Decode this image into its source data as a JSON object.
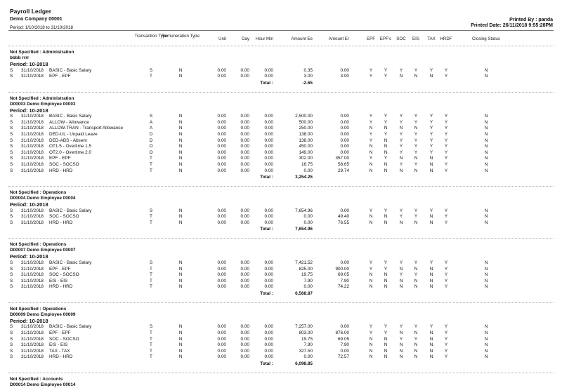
{
  "header": {
    "title": "Payroll Ledger",
    "company": "Demo Company 00001",
    "period": "Period: 1/10/2018 to 31/10/2018",
    "printed_by": "Printed By : panda",
    "printed_date": "Printed Date: 26/11/2018  9:55:28PM"
  },
  "columns": {
    "transaction_type": "Transaction Type",
    "remuneration_type": "Remuneration Type",
    "unit": "Unit",
    "day": "Day",
    "hour_min": "Hour Min",
    "amount_ee": "Amount Ee",
    "amount_er": "Amount Er",
    "epf": "EPF",
    "epfs": "EPF's",
    "soc": "SOC",
    "eis": "EIS",
    "tax": "TAX",
    "hrdf": "HRDF",
    "closing_status": "Closing Status"
  },
  "total_label": "Total :",
  "sections": [
    {
      "dept": "Not Specified : Administration",
      "employee": "bbbb rrrr",
      "period": "Period: 10-2018",
      "rows": [
        [
          "S",
          "31/10/2018",
          "BASIC - Basic Salary",
          "S",
          "N",
          "0.00",
          "0.00",
          "0.00",
          "0.35",
          "0.00",
          "Y",
          "Y",
          "Y",
          "Y",
          "Y",
          "Y",
          "N"
        ],
        [
          "S",
          "31/10/2018",
          "EPF - EPF",
          "T",
          "N",
          "0.00",
          "0.00",
          "0.00",
          "3.00",
          "3.00",
          "Y",
          "Y",
          "N",
          "N",
          "N",
          "Y",
          "N"
        ]
      ],
      "total": "-2.65"
    },
    {
      "dept": "Not Specified : Administration",
      "employee": "D00003 Demo Employee 00003",
      "period": "Period: 10-2018",
      "rows": [
        [
          "S",
          "31/10/2018",
          "BASIC - Basic Salary",
          "S",
          "N",
          "0.00",
          "0.00",
          "0.00",
          "2,500.00",
          "0.00",
          "Y",
          "Y",
          "Y",
          "Y",
          "Y",
          "Y",
          "N"
        ],
        [
          "S",
          "31/10/2018",
          "ALLOW - Allowance",
          "A",
          "N",
          "0.00",
          "0.00",
          "0.00",
          "500.00",
          "0.00",
          "Y",
          "Y",
          "Y",
          "Y",
          "Y",
          "Y",
          "N"
        ],
        [
          "S",
          "31/10/2018",
          "ALLOW-TRAN - Transport Allowance",
          "A",
          "N",
          "0.00",
          "0.00",
          "0.00",
          "250.00",
          "0.00",
          "N",
          "N",
          "N",
          "N",
          "Y",
          "Y",
          "N"
        ],
        [
          "S",
          "31/10/2018",
          "DED-UL - Unpaid Leave",
          "D",
          "N",
          "0.00",
          "0.00",
          "0.00",
          "138.00",
          "0.00",
          "Y",
          "Y",
          "Y",
          "Y",
          "Y",
          "Y",
          "N"
        ],
        [
          "S",
          "31/10/2018",
          "DED-ABS - Absent",
          "D",
          "N",
          "0.00",
          "0.00",
          "0.00",
          "138.00",
          "0.00",
          "Y",
          "N",
          "Y",
          "Y",
          "Y",
          "Y",
          "N"
        ],
        [
          "S",
          "31/10/2018",
          "OT1.5 - Overtime 1.5",
          "O",
          "N",
          "0.00",
          "0.00",
          "0.00",
          "450.00",
          "0.00",
          "N",
          "N",
          "Y",
          "Y",
          "Y",
          "Y",
          "N"
        ],
        [
          "S",
          "31/10/2018",
          "OT2.0 - Overtime 2.0",
          "O",
          "N",
          "0.00",
          "0.00",
          "0.00",
          "149.00",
          "0.00",
          "N",
          "N",
          "Y",
          "Y",
          "Y",
          "Y",
          "N"
        ],
        [
          "S",
          "31/10/2018",
          "EPF - EPF",
          "T",
          "N",
          "0.00",
          "0.00",
          "0.00",
          "302.00",
          "357.00",
          "Y",
          "Y",
          "N",
          "N",
          "N",
          "Y",
          "N"
        ],
        [
          "S",
          "31/10/2018",
          "SOC - SOCSO",
          "T",
          "N",
          "0.00",
          "0.00",
          "0.00",
          "16.75",
          "58.65",
          "N",
          "N",
          "Y",
          "Y",
          "N",
          "Y",
          "N"
        ],
        [
          "S",
          "31/10/2018",
          "HRD - HRD",
          "T",
          "N",
          "0.00",
          "0.00",
          "0.00",
          "0.00",
          "29.74",
          "N",
          "N",
          "N",
          "N",
          "N",
          "Y",
          "N"
        ]
      ],
      "total": "3,254.25"
    },
    {
      "dept": "Not Specified : Operations",
      "employee": "D00004 Demo Employee 00004",
      "period": "Period: 10-2018",
      "rows": [
        [
          "S",
          "31/10/2018",
          "BASIC - Basic Salary",
          "S",
          "N",
          "0.00",
          "0.00",
          "0.00",
          "7,654.96",
          "0.00",
          "Y",
          "Y",
          "Y",
          "Y",
          "Y",
          "Y",
          "N"
        ],
        [
          "S",
          "31/10/2018",
          "SOC - SOCSO",
          "T",
          "N",
          "0.00",
          "0.00",
          "0.00",
          "0.00",
          "49.40",
          "N",
          "N",
          "Y",
          "Y",
          "N",
          "Y",
          "N"
        ],
        [
          "S",
          "31/10/2018",
          "HRD - HRD",
          "T",
          "N",
          "0.00",
          "0.00",
          "0.00",
          "0.00",
          "76.55",
          "N",
          "N",
          "N",
          "N",
          "N",
          "Y",
          "N"
        ]
      ],
      "total": "7,654.96"
    },
    {
      "dept": "Not Specified : Operations",
      "employee": "D00007 Demo Employee 00007",
      "period": "Period: 10-2018",
      "rows": [
        [
          "S",
          "31/10/2018",
          "BASIC - Basic Salary",
          "S",
          "N",
          "0.00",
          "0.00",
          "0.00",
          "7,421.52",
          "0.00",
          "Y",
          "Y",
          "Y",
          "Y",
          "Y",
          "Y",
          "N"
        ],
        [
          "S",
          "31/10/2018",
          "EPF - EPF",
          "T",
          "N",
          "0.00",
          "0.00",
          "0.00",
          "825.00",
          "900.00",
          "Y",
          "Y",
          "N",
          "N",
          "N",
          "Y",
          "N"
        ],
        [
          "S",
          "31/10/2018",
          "SOC - SOCSO",
          "T",
          "N",
          "0.00",
          "0.00",
          "0.00",
          "19.75",
          "69.05",
          "N",
          "N",
          "Y",
          "Y",
          "N",
          "Y",
          "N"
        ],
        [
          "S",
          "31/10/2018",
          "EIS - EIS",
          "T",
          "N",
          "0.00",
          "0.00",
          "0.00",
          "7.90",
          "7.90",
          "N",
          "N",
          "N",
          "N",
          "N",
          "Y",
          "N"
        ],
        [
          "S",
          "31/10/2018",
          "HRD - HRD",
          "T",
          "N",
          "0.00",
          "0.00",
          "0.00",
          "0.00",
          "74.22",
          "N",
          "N",
          "N",
          "N",
          "N",
          "Y",
          "N"
        ]
      ],
      "total": "6,568.87"
    },
    {
      "dept": "Not Specified : Operations",
      "employee": "D00009 Demo Employee 00009",
      "period": "Period: 10-2018",
      "rows": [
        [
          "S",
          "31/10/2018",
          "BASIC - Basic Salary",
          "S",
          "N",
          "0.00",
          "0.00",
          "0.00",
          "7,257.00",
          "0.00",
          "Y",
          "Y",
          "Y",
          "Y",
          "Y",
          "Y",
          "N"
        ],
        [
          "S",
          "31/10/2018",
          "EPF - EPF",
          "T",
          "N",
          "0.00",
          "0.00",
          "0.00",
          "803.00",
          "876.00",
          "Y",
          "Y",
          "N",
          "N",
          "N",
          "Y",
          "N"
        ],
        [
          "S",
          "31/10/2018",
          "SOC - SOCSO",
          "T",
          "N",
          "0.00",
          "0.00",
          "0.00",
          "19.75",
          "69.05",
          "N",
          "N",
          "Y",
          "Y",
          "N",
          "Y",
          "N"
        ],
        [
          "S",
          "31/10/2018",
          "EIS - EIS",
          "T",
          "N",
          "0.00",
          "0.00",
          "0.00",
          "7.90",
          "7.90",
          "N",
          "N",
          "N",
          "N",
          "N",
          "Y",
          "N"
        ],
        [
          "S",
          "31/10/2018",
          "TAX - TAX",
          "T",
          "N",
          "0.00",
          "0.00",
          "0.00",
          "327.50",
          "0.00",
          "N",
          "N",
          "N",
          "N",
          "N",
          "Y",
          "N"
        ],
        [
          "S",
          "31/10/2018",
          "HRD - HRD",
          "T",
          "N",
          "0.00",
          "0.00",
          "0.00",
          "0.00",
          "72.57",
          "N",
          "N",
          "N",
          "N",
          "N",
          "Y",
          "N"
        ]
      ],
      "total": "6,098.85"
    },
    {
      "dept": "Not Specified : Accounts",
      "employee": "D00014 Demo Employee 00014"
    }
  ]
}
